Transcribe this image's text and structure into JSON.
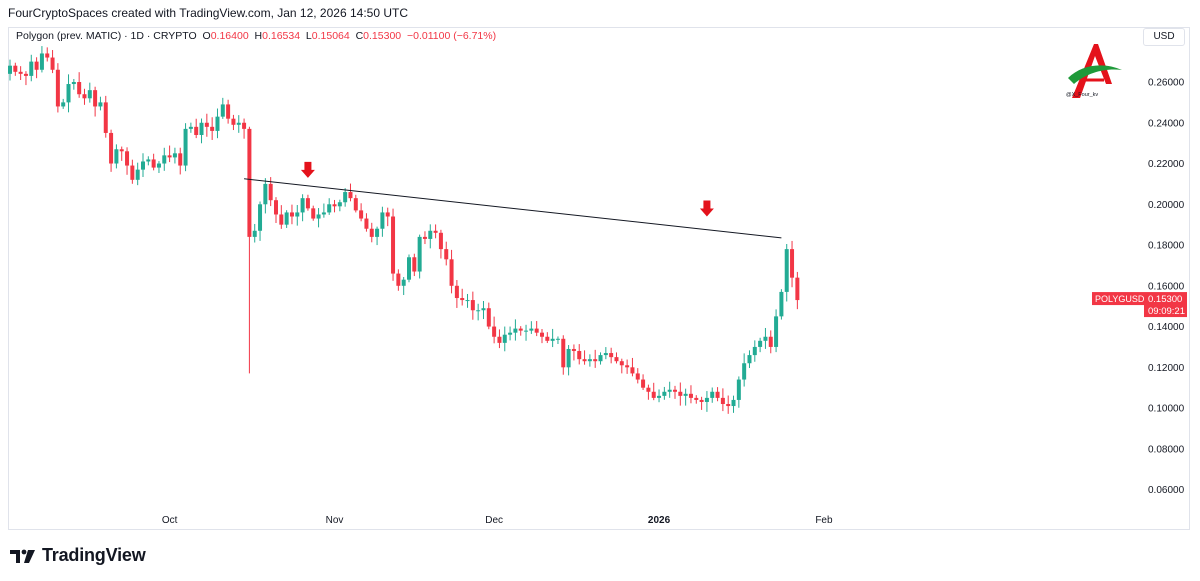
{
  "caption": "FourCryptoSpaces created with TradingView.com, Jan 12, 2026 14:50 UTC",
  "legend": {
    "symbol": "Polygon (prev. MATIC) · 1D · CRYPTO",
    "o_label": "O",
    "o": "0.16400",
    "h_label": "H",
    "h": "0.16534",
    "l_label": "L",
    "l": "0.15064",
    "c_label": "C",
    "c": "0.15300",
    "change": "−0.01100 (−6.71%)"
  },
  "currency": "USD",
  "price_tag": {
    "symbol": "POLYGUSD",
    "price": "0.15300",
    "countdown": "09:09:21"
  },
  "brand": "TradingView",
  "watermark_text": "@X_Four_kv",
  "colors": {
    "up": "#22ab94",
    "down": "#f23645",
    "line": "#131722",
    "arrow": "#e4121b"
  },
  "chart_data": {
    "type": "candlestick",
    "y_ticks": [
      "0.26000",
      "0.24000",
      "0.22000",
      "0.20000",
      "0.18000",
      "0.16000",
      "0.14000",
      "0.12000",
      "0.10000",
      "0.08000",
      "0.06000"
    ],
    "x_labels": [
      {
        "label": "Oct",
        "date": "2025-10-01",
        "bold": false
      },
      {
        "label": "Nov",
        "date": "2025-11-01",
        "bold": false
      },
      {
        "label": "Dec",
        "date": "2025-12-01",
        "bold": false
      },
      {
        "label": "2026",
        "date": "2026-01-01",
        "bold": true
      },
      {
        "label": "Feb",
        "date": "2026-02-01",
        "bold": false
      }
    ],
    "ylim": [
      0.05,
      0.285
    ],
    "first_date": "2025-09-01",
    "closes": [
      0.268,
      0.265,
      0.264,
      0.263,
      0.27,
      0.266,
      0.274,
      0.272,
      0.266,
      0.248,
      0.25,
      0.259,
      0.26,
      0.254,
      0.252,
      0.256,
      0.248,
      0.25,
      0.235,
      0.22,
      0.227,
      0.226,
      0.219,
      0.212,
      0.217,
      0.221,
      0.222,
      0.218,
      0.22,
      0.224,
      0.223,
      0.225,
      0.219,
      0.237,
      0.238,
      0.234,
      0.24,
      0.238,
      0.236,
      0.243,
      0.249,
      0.242,
      0.239,
      0.24,
      0.237,
      0.184,
      0.187,
      0.2,
      0.21,
      0.202,
      0.195,
      0.19,
      0.196,
      0.194,
      0.196,
      0.203,
      0.198,
      0.193,
      0.195,
      0.196,
      0.2,
      0.199,
      0.201,
      0.206,
      0.203,
      0.197,
      0.193,
      0.188,
      0.184,
      0.188,
      0.196,
      0.194,
      0.166,
      0.16,
      0.163,
      0.174,
      0.167,
      0.184,
      0.183,
      0.187,
      0.186,
      0.178,
      0.173,
      0.16,
      0.154,
      0.153,
      0.153,
      0.148,
      0.148,
      0.149,
      0.14,
      0.135,
      0.132,
      0.136,
      0.137,
      0.139,
      0.138,
      0.138,
      0.139,
      0.137,
      0.135,
      0.133,
      0.134,
      0.134,
      0.12,
      0.129,
      0.128,
      0.124,
      0.123,
      0.124,
      0.123,
      0.126,
      0.127,
      0.125,
      0.123,
      0.121,
      0.12,
      0.117,
      0.114,
      0.11,
      0.108,
      0.105,
      0.106,
      0.108,
      0.109,
      0.108,
      0.106,
      0.107,
      0.105,
      0.104,
      0.103,
      0.105,
      0.108,
      0.105,
      0.102,
      0.101,
      0.104,
      0.114,
      0.122,
      0.126,
      0.13,
      0.133,
      0.135,
      0.13,
      0.145,
      0.157,
      0.178,
      0.164,
      0.153
    ],
    "trendline": {
      "start": {
        "date": "2025-10-15",
        "price": 0.2125
      },
      "end": {
        "date": "2026-01-24",
        "price": 0.1835
      }
    },
    "markers": [
      {
        "date": "2025-10-27",
        "price": 0.212,
        "type": "down-arrow"
      },
      {
        "date": "2026-01-10",
        "price": 0.193,
        "type": "down-arrow"
      }
    ],
    "last_price": 0.153,
    "grid": false
  }
}
